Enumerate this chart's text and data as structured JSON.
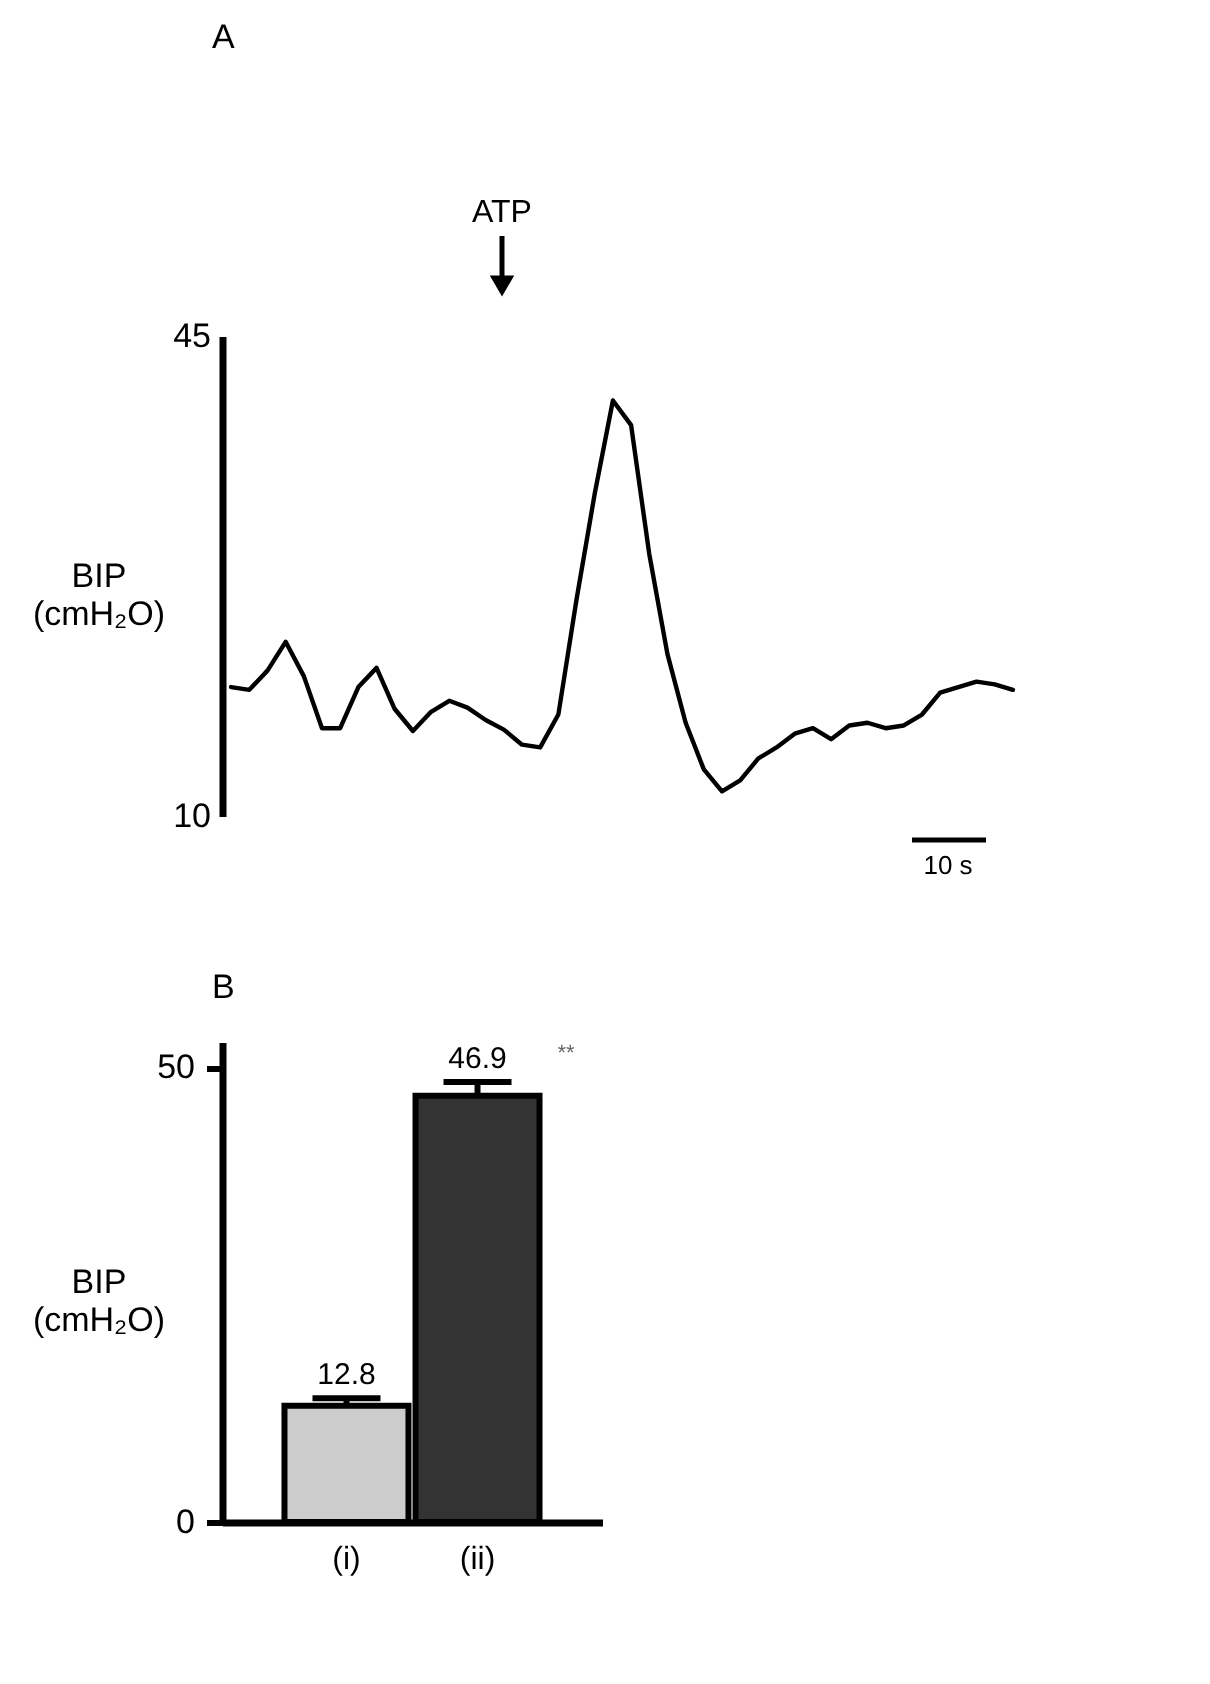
{
  "chart_data": [
    {
      "type": "line",
      "title": "A",
      "ylabel": "BIP\n(cmH₂O)",
      "categories": [
        null,
        null,
        null,
        null,
        null,
        null,
        null,
        null,
        null,
        null,
        null,
        null,
        null,
        null,
        null,
        null,
        null,
        null,
        null,
        null,
        null,
        null,
        null,
        null,
        null,
        null,
        null,
        null,
        null,
        null,
        null,
        null,
        null,
        null,
        null,
        null,
        null,
        null,
        null,
        null,
        null,
        null,
        null,
        null
      ],
      "series": [
        {
          "color": "#000000",
          "values": [
            19.4,
            19.2,
            20.6,
            22.7,
            20.2,
            16.4,
            16.4,
            19.4,
            20.8,
            17.8,
            16.2,
            17.6,
            18.4,
            17.9,
            17.0,
            16.3,
            15.2,
            15.0,
            17.4,
            25.8,
            33.5,
            40.3,
            38.5,
            29.1,
            21.8,
            16.8,
            13.4,
            11.8,
            12.6,
            14.2,
            15.0,
            16.0,
            16.4,
            15.6,
            16.6,
            16.8,
            16.4,
            16.6,
            17.4,
            19.0,
            19.4,
            19.8,
            19.6,
            19.2
          ]
        }
      ],
      "ylim": [
        10,
        45
      ],
      "yticks": [
        10,
        45
      ],
      "tick_labels": "y",
      "grid": false,
      "marker": "none",
      "line_style": "solid",
      "annotations": [
        "ATP",
        "10 s"
      ]
    },
    {
      "type": "bar",
      "title": "B",
      "ylabel": "BIP\n(cmH₂O)",
      "categories": [
        "(i)",
        "(ii)"
      ],
      "values": [
        12.8,
        46.9
      ],
      "colors": [
        "#cccccc",
        "#333333"
      ],
      "errors": [
        0.8,
        1.5
      ],
      "ylim": [
        0,
        52.8
      ],
      "yticks": [
        0,
        50
      ],
      "data_labels": true,
      "grid": false,
      "annotations": [
        "**"
      ]
    }
  ]
}
